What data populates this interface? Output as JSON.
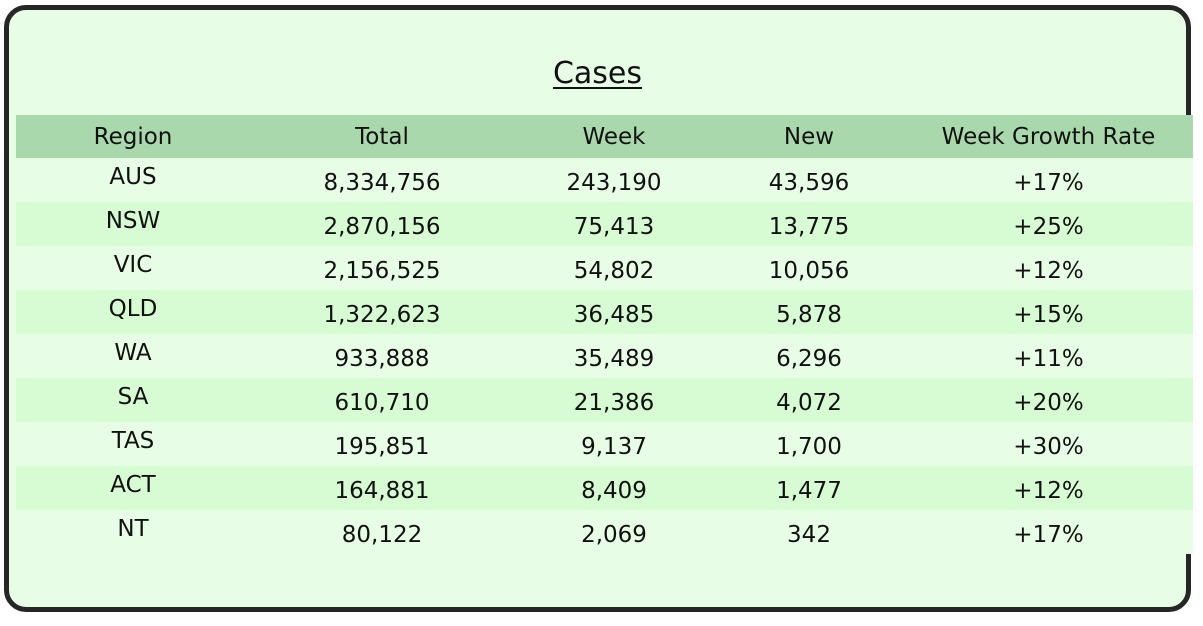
{
  "title": "Cases",
  "headers": [
    "Region",
    "Total",
    "Week",
    "New",
    "Week Growth Rate"
  ],
  "rows": [
    {
      "region": "AUS",
      "total": "8,334,756",
      "week": "243,190",
      "new": "43,596",
      "growth": "+17%"
    },
    {
      "region": "NSW",
      "total": "2,870,156",
      "week": "75,413",
      "new": "13,775",
      "growth": "+25%"
    },
    {
      "region": "VIC",
      "total": "2,156,525",
      "week": "54,802",
      "new": "10,056",
      "growth": "+12%"
    },
    {
      "region": "QLD",
      "total": "1,322,623",
      "week": "36,485",
      "new": "5,878",
      "growth": "+15%"
    },
    {
      "region": "WA",
      "total": "933,888",
      "week": "35,489",
      "new": "6,296",
      "growth": "+11%"
    },
    {
      "region": "SA",
      "total": "610,710",
      "week": "21,386",
      "new": "4,072",
      "growth": "+20%"
    },
    {
      "region": "TAS",
      "total": "195,851",
      "week": "9,137",
      "new": "1,700",
      "growth": "+30%"
    },
    {
      "region": "ACT",
      "total": "164,881",
      "week": "8,409",
      "new": "1,477",
      "growth": "+12%"
    },
    {
      "region": "NT",
      "total": "80,122",
      "week": "2,069",
      "new": "342",
      "growth": "+17%"
    }
  ],
  "colors": {
    "card_background": "#e8fde6",
    "header_background": "#a9d8ac",
    "stripe_background": "#d7fbd3",
    "border": "#262626"
  }
}
